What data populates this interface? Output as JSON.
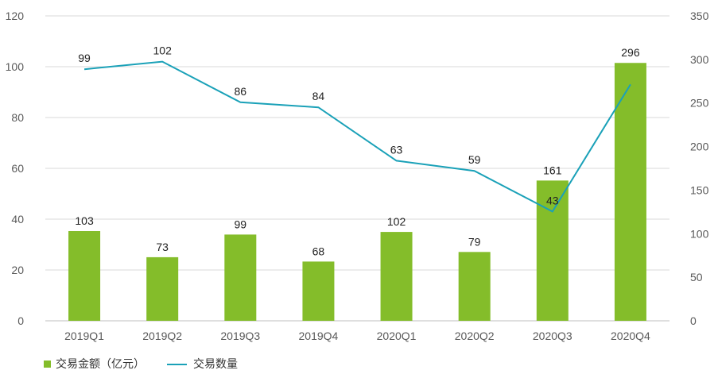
{
  "chart_data": {
    "type": "bar",
    "categories": [
      "2019Q1",
      "2019Q2",
      "2019Q3",
      "2019Q4",
      "2020Q1",
      "2020Q2",
      "2020Q3",
      "2020Q4"
    ],
    "series": [
      {
        "name": "交易金额（亿元）",
        "type": "bar",
        "axis": "right",
        "values": [
          103,
          73,
          99,
          68,
          102,
          79,
          161,
          296
        ],
        "color": "#84BD2A"
      },
      {
        "name": "交易数量",
        "type": "line",
        "axis": "left",
        "values": [
          99,
          102,
          86,
          84,
          63,
          59,
          43,
          93
        ],
        "color": "#1AA1B8"
      }
    ],
    "left_axis": {
      "min": 0,
      "max": 120,
      "ticks": [
        0,
        20,
        40,
        60,
        80,
        100,
        120
      ]
    },
    "right_axis": {
      "min": 0,
      "max": 350,
      "ticks": [
        0,
        50,
        100,
        150,
        200,
        250,
        300,
        350
      ]
    },
    "grid": true,
    "legend_position": "bottom-left",
    "title": "",
    "xlabel": "",
    "ylabel": ""
  }
}
